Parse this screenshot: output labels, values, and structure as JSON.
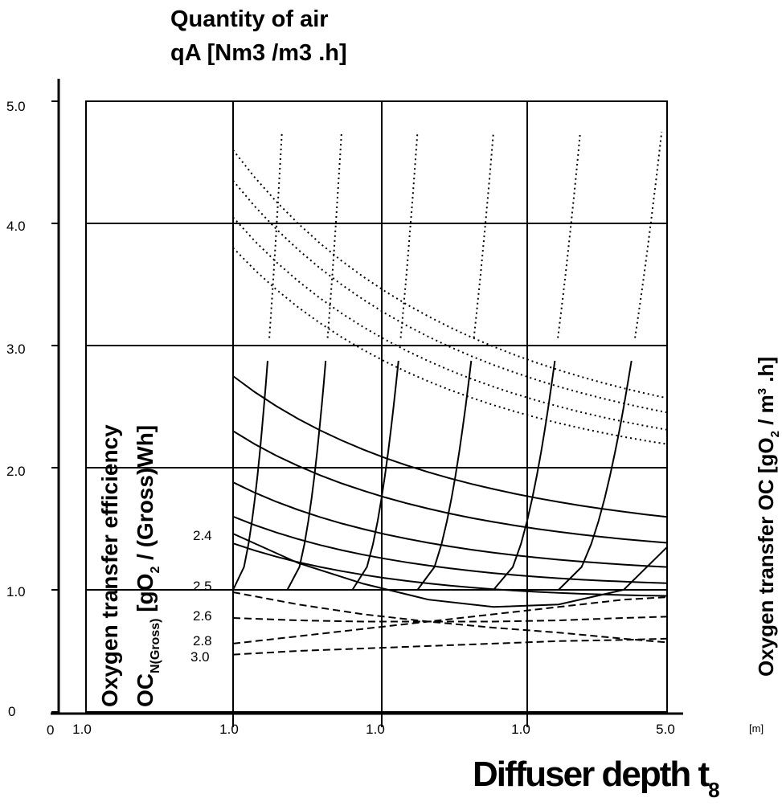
{
  "chart_data": {
    "type": "line",
    "title_line1": "Quantity of air",
    "title_line2": "qA [Nm3 /m3 .h]",
    "xlabel": "Diffuser depth t",
    "xlabel_sub": "8",
    "x_unit": "[m]",
    "ylabel_left_line1": "Oxygen transfer efficiency",
    "ylabel_left_line2_prefix": "OC",
    "ylabel_left_line2_sub": "N(Gross)",
    "ylabel_left_line2_mid": "  [gO",
    "ylabel_left_line2_sub2": "2",
    "ylabel_left_line2_suffix": " / (Gross)Wh]",
    "ylabel_right_prefix": "Oxygen transfer OC  [gO",
    "ylabel_right_sub": "2",
    "ylabel_right_mid": " / m",
    "ylabel_right_sup": "3",
    "ylabel_right_suffix": " .h]",
    "x_origin_label": "0",
    "x_ticks": [
      "1.0",
      "1.0",
      "1.0",
      "1.0",
      "5.0"
    ],
    "y_ticks": [
      "0",
      "1.0",
      "2.0",
      "3.0",
      "4.0",
      "5.0"
    ],
    "ylim": [
      0,
      5
    ],
    "grid": true,
    "series_labels": [
      "2.4",
      "2.5",
      "2.6",
      "2.8",
      "3.0"
    ],
    "series": [
      {
        "name": "2.4",
        "style": "solid",
        "x": [
          1.0,
          1.6,
          2.2,
          2.8,
          3.4,
          4.0,
          4.6,
          5.0
        ],
        "y": [
          1.46,
          1.22,
          1.05,
          0.92,
          0.86,
          0.88,
          1.0,
          1.35
        ]
      },
      {
        "name": "2.5",
        "style": "dashed",
        "x": [
          1.0,
          1.6,
          2.2,
          2.8,
          3.4,
          4.0,
          4.6,
          5.0
        ],
        "y": [
          0.98,
          0.88,
          0.8,
          0.74,
          0.69,
          0.65,
          0.6,
          0.57
        ]
      },
      {
        "name": "2.6",
        "style": "dashed",
        "x": [
          1.0,
          1.6,
          2.2,
          2.8,
          3.4,
          4.0,
          4.6,
          5.0
        ],
        "y": [
          0.77,
          0.75,
          0.74,
          0.74,
          0.74,
          0.75,
          0.77,
          0.78
        ]
      },
      {
        "name": "2.8",
        "style": "dashed",
        "x": [
          1.0,
          1.6,
          2.2,
          2.8,
          3.4,
          4.0,
          4.6,
          5.0
        ],
        "y": [
          0.56,
          0.62,
          0.68,
          0.74,
          0.8,
          0.86,
          0.92,
          0.94
        ]
      },
      {
        "name": "3.0",
        "style": "dashed",
        "x": [
          1.0,
          1.6,
          2.2,
          2.8,
          3.4,
          4.0,
          4.6,
          5.0
        ],
        "y": [
          0.47,
          0.5,
          0.52,
          0.54,
          0.56,
          0.58,
          0.59,
          0.6
        ]
      }
    ]
  }
}
